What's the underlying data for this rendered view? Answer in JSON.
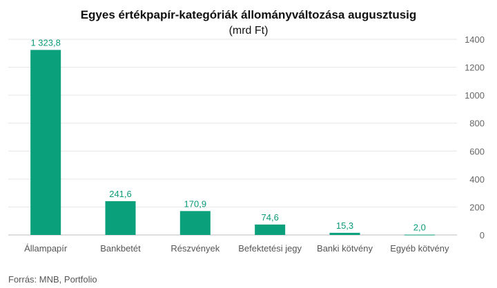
{
  "chart_data": {
    "type": "bar",
    "title": "Egyes értékpapír-kategóriák állományváltozása augusztusig",
    "subtitle": "(mrd Ft)",
    "categories": [
      "Állampapír",
      "Bankbetét",
      "Részvények",
      "Befektetési jegy",
      "Banki kötvény",
      "Egyéb kötvény"
    ],
    "values": [
      1323.8,
      241.6,
      170.9,
      74.6,
      15.3,
      2.0
    ],
    "data_labels": [
      "1 323,8",
      "241,6",
      "170,9",
      "74,6",
      "15,3",
      "2,0"
    ],
    "y_ticks": [
      0,
      200,
      400,
      600,
      800,
      1000,
      1200,
      1400
    ],
    "y_tick_labels": [
      "0",
      "200",
      "400",
      "600",
      "800",
      "1000",
      "1200",
      "1400"
    ],
    "ylim": [
      0,
      1400
    ],
    "y_axis_position": "right",
    "grid": true,
    "bar_color": "#0aa07c",
    "label_color": "#0a9a78",
    "source": "Forrás: MNB, Portfolio"
  }
}
